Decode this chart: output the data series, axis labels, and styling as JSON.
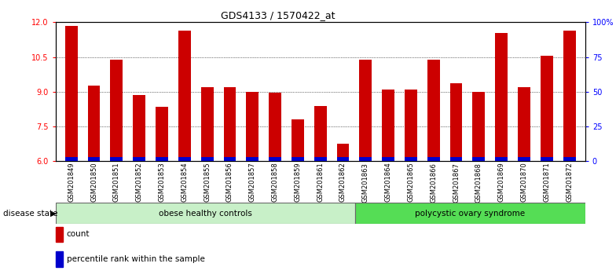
{
  "title": "GDS4133 / 1570422_at",
  "samples": [
    "GSM201849",
    "GSM201850",
    "GSM201851",
    "GSM201852",
    "GSM201853",
    "GSM201854",
    "GSM201855",
    "GSM201856",
    "GSM201857",
    "GSM201858",
    "GSM201859",
    "GSM201861",
    "GSM201862",
    "GSM201863",
    "GSM201864",
    "GSM201865",
    "GSM201866",
    "GSM201867",
    "GSM201868",
    "GSM201869",
    "GSM201870",
    "GSM201871",
    "GSM201872"
  ],
  "counts": [
    11.85,
    9.25,
    10.4,
    8.85,
    8.35,
    11.65,
    9.2,
    9.2,
    9.0,
    8.95,
    7.8,
    8.4,
    6.75,
    10.4,
    9.1,
    9.1,
    10.4,
    9.35,
    9.0,
    11.55,
    9.2,
    10.55,
    11.65
  ],
  "percentiles": [
    3,
    3,
    3,
    3,
    3,
    3,
    3,
    3,
    3,
    3,
    3,
    3,
    3,
    3,
    3,
    3,
    3,
    3,
    3,
    3,
    3,
    3,
    3
  ],
  "bar_color": "#cc0000",
  "percentile_color": "#0000cc",
  "ylim_left": [
    6,
    12
  ],
  "ylim_right": [
    0,
    100
  ],
  "yticks_left": [
    6,
    7.5,
    9,
    10.5,
    12
  ],
  "yticks_right": [
    0,
    25,
    50,
    75,
    100
  ],
  "ytick_labels_right": [
    "0",
    "25",
    "50",
    "75",
    "100%"
  ],
  "group1_label": "obese healthy controls",
  "group2_label": "polycystic ovary syndrome",
  "group1_count": 13,
  "group1_color": "#c8f0c8",
  "group2_color": "#55dd55",
  "disease_state_label": "disease state",
  "legend_count_label": "count",
  "legend_percentile_label": "percentile rank within the sample",
  "bar_width": 0.55,
  "background_color": "#ffffff",
  "base_value": 6.0,
  "pct_bar_height": 3.0
}
